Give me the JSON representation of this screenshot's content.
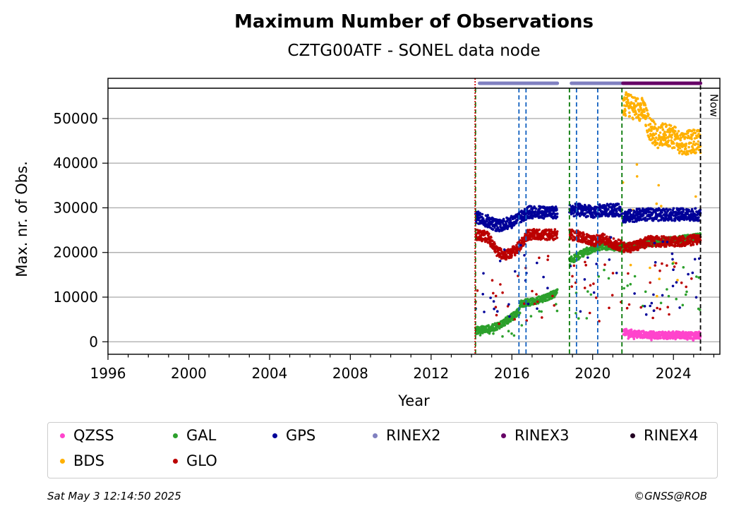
{
  "chart_data": {
    "type": "scatter",
    "title": "Maximum Number of Observations",
    "subtitle": "CZTG00ATF - SONEL data node",
    "xlabel": "Year",
    "ylabel": "Max. nr. of Obs.",
    "xlim": [
      1996,
      2026.3
    ],
    "ylim": [
      -2800,
      59000
    ],
    "x_ticks": [
      1996,
      2000,
      2004,
      2008,
      2012,
      2016,
      2020,
      2024
    ],
    "y_ticks": [
      0,
      10000,
      20000,
      30000,
      40000,
      50000
    ],
    "grid": "horizontal",
    "now_label": "Now",
    "now_year": 2025.34,
    "green_dashed_lines": [
      2014.2,
      2018.85,
      2021.45
    ],
    "blue_dashed_lines": [
      2016.35,
      2016.7,
      2019.2,
      2020.25
    ],
    "red_line": 2014.18,
    "rinex_bars": [
      {
        "format": "RINEX2",
        "start": 2014.4,
        "end": 2018.25,
        "color": "#8080c0"
      },
      {
        "format": "RINEX2",
        "start": 2018.95,
        "end": 2021.45,
        "color": "#8080c0"
      },
      {
        "format": "RINEX3",
        "start": 2021.5,
        "end": 2025.34,
        "color": "#660066"
      }
    ],
    "series": [
      {
        "name": "QZSS",
        "color": "#ff44cc",
        "segments": [
          {
            "start": 2021.5,
            "end": 2025.34,
            "points": [
              [
                2021.5,
                2200
              ],
              [
                2022.2,
                1700
              ],
              [
                2023,
                1500
              ],
              [
                2024,
                1500
              ],
              [
                2025.3,
                1500
              ]
            ]
          }
        ]
      },
      {
        "name": "BDS",
        "color": "#ffb000",
        "segments": [
          {
            "start": 2021.5,
            "end": 2025.34,
            "points": [
              [
                2021.5,
                53500
              ],
              [
                2022,
                52500
              ],
              [
                2022.5,
                52000
              ],
              [
                2022.8,
                48000
              ],
              [
                2023.2,
                46000
              ],
              [
                2023.8,
                46500
              ],
              [
                2024.2,
                45000
              ],
              [
                2024.6,
                44500
              ],
              [
                2025,
                45000
              ],
              [
                2025.3,
                44800
              ]
            ]
          }
        ]
      },
      {
        "name": "GAL",
        "color": "#2ca02c",
        "segments": [
          {
            "start": 2014.2,
            "end": 2016.4,
            "points": [
              [
                2014.2,
                2500
              ],
              [
                2015,
                3000
              ],
              [
                2015.5,
                4000
              ],
              [
                2016,
                5500
              ],
              [
                2016.4,
                7000
              ]
            ]
          },
          {
            "start": 2016.4,
            "end": 2018.25,
            "points": [
              [
                2016.4,
                8500
              ],
              [
                2017,
                9000
              ],
              [
                2017.5,
                9500
              ],
              [
                2018.25,
                11000
              ]
            ]
          },
          {
            "start": 2018.85,
            "end": 2021.45,
            "points": [
              [
                2018.85,
                18000
              ],
              [
                2019.2,
                19000
              ],
              [
                2019.8,
                20500
              ],
              [
                2020.5,
                21500
              ],
              [
                2021.45,
                21000
              ]
            ]
          },
          {
            "start": 2021.5,
            "end": 2025.34,
            "points": [
              [
                2021.5,
                21000
              ],
              [
                2022.5,
                22000
              ],
              [
                2023.5,
                22500
              ],
              [
                2024.5,
                23000
              ],
              [
                2025.3,
                23500
              ]
            ]
          }
        ]
      },
      {
        "name": "GLO",
        "color": "#bb0000",
        "segments": [
          {
            "start": 2014.2,
            "end": 2018.25,
            "points": [
              [
                2014.2,
                24000
              ],
              [
                2014.8,
                23500
              ],
              [
                2015.3,
                20000
              ],
              [
                2015.8,
                19500
              ],
              [
                2016.3,
                21000
              ],
              [
                2016.8,
                24000
              ],
              [
                2017.5,
                24000
              ],
              [
                2018.25,
                24000
              ]
            ]
          },
          {
            "start": 2018.85,
            "end": 2021.45,
            "points": [
              [
                2018.85,
                24000
              ],
              [
                2019.5,
                23500
              ],
              [
                2020,
                22500
              ],
              [
                2020.5,
                23000
              ],
              [
                2021,
                22000
              ],
              [
                2021.45,
                21500
              ]
            ]
          },
          {
            "start": 2021.5,
            "end": 2025.34,
            "points": [
              [
                2021.5,
                21000
              ],
              [
                2022.2,
                21500
              ],
              [
                2022.8,
                22500
              ],
              [
                2023.5,
                22500
              ],
              [
                2024.5,
                22500
              ],
              [
                2025.3,
                23000
              ]
            ]
          }
        ]
      },
      {
        "name": "GPS",
        "color": "#000099",
        "segments": [
          {
            "start": 2014.2,
            "end": 2018.25,
            "points": [
              [
                2014.2,
                28000
              ],
              [
                2014.8,
                27000
              ],
              [
                2015.3,
                26000
              ],
              [
                2015.8,
                26500
              ],
              [
                2016.3,
                27500
              ],
              [
                2016.8,
                29000
              ],
              [
                2017.5,
                29000
              ],
              [
                2018.25,
                29000
              ]
            ]
          },
          {
            "start": 2018.85,
            "end": 2021.45,
            "points": [
              [
                2018.85,
                29500
              ],
              [
                2019.5,
                29500
              ],
              [
                2020,
                29000
              ],
              [
                2020.5,
                29500
              ],
              [
                2021.45,
                29500
              ]
            ]
          },
          {
            "start": 2021.5,
            "end": 2025.34,
            "points": [
              [
                2021.5,
                28000
              ],
              [
                2022.5,
                28500
              ],
              [
                2023.5,
                28500
              ],
              [
                2024.5,
                28500
              ],
              [
                2025.3,
                28500
              ]
            ]
          }
        ]
      }
    ],
    "legend": [
      {
        "name": "QZSS",
        "color": "#ff44cc"
      },
      {
        "name": "GAL",
        "color": "#2ca02c"
      },
      {
        "name": "GPS",
        "color": "#000099"
      },
      {
        "name": "RINEX2",
        "color": "#8080c0"
      },
      {
        "name": "RINEX3",
        "color": "#660066"
      },
      {
        "name": "RINEX4",
        "color": "#220022"
      },
      {
        "name": "BDS",
        "color": "#ffb000"
      },
      {
        "name": "GLO",
        "color": "#bb0000"
      }
    ]
  },
  "footer": {
    "date": "Sat May  3 12:14:50 2025",
    "copyright": "©GNSS@ROB"
  }
}
